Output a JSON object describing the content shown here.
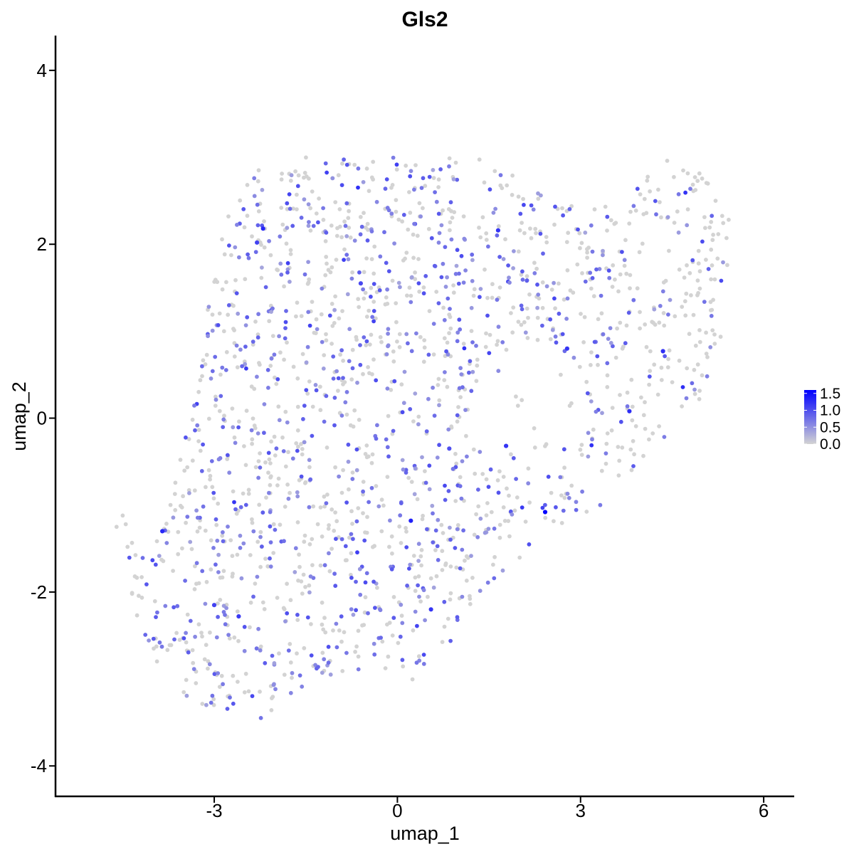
{
  "chart_data": {
    "type": "scatter",
    "title": "Gls2",
    "xlabel": "umap_1",
    "ylabel": "umap_2",
    "xlim": [
      -5.6,
      6.5
    ],
    "ylim": [
      -4.35,
      4.4
    ],
    "x_ticks": [
      -3,
      0,
      3,
      6
    ],
    "x_tick_labels": [
      "-3",
      "0",
      "3",
      "6"
    ],
    "y_ticks": [
      -4,
      -2,
      0,
      2,
      4
    ],
    "y_tick_labels": [
      "-4",
      "-2",
      "0",
      "2",
      "4"
    ],
    "grid": false,
    "point_count": 1800,
    "color_low": "#d3d3d3",
    "color_high": "#0000ff",
    "legend": {
      "placement": "right",
      "type": "colorbar",
      "range": [
        0,
        1.6
      ],
      "ticks": [
        0.0,
        0.5,
        1.0,
        1.5
      ],
      "labels": [
        "0.0",
        "0.5",
        "1.0",
        "1.5"
      ]
    },
    "highlighted_points": [
      {
        "x": 2.42,
        "y": -1.08,
        "value": 1.55
      },
      {
        "x": 0.22,
        "y": -1.18,
        "value": 1.35
      },
      {
        "x": -3.85,
        "y": -1.3,
        "value": 1.3
      },
      {
        "x": -2.2,
        "y": 2.18,
        "value": 1.3
      },
      {
        "x": 1.65,
        "y": 2.16,
        "value": 1.2
      },
      {
        "x": 2.78,
        "y": 0.8,
        "value": 1.2
      },
      {
        "x": 4.35,
        "y": 0.77,
        "value": 1.25
      },
      {
        "x": 3.8,
        "y": 0.08,
        "value": 1.25
      },
      {
        "x": 1.78,
        "y": -0.32,
        "value": 1.2
      },
      {
        "x": 0.55,
        "y": -2.2,
        "value": 1.2
      },
      {
        "x": -3.0,
        "y": -2.15,
        "value": 1.1
      },
      {
        "x": -2.6,
        "y": -2.28,
        "value": 1.15
      },
      {
        "x": -2.3,
        "y": 2.02,
        "value": 1.1
      },
      {
        "x": -0.6,
        "y": 1.55,
        "value": 1.05
      },
      {
        "x": 0.85,
        "y": -0.35,
        "value": 1.0
      }
    ]
  }
}
